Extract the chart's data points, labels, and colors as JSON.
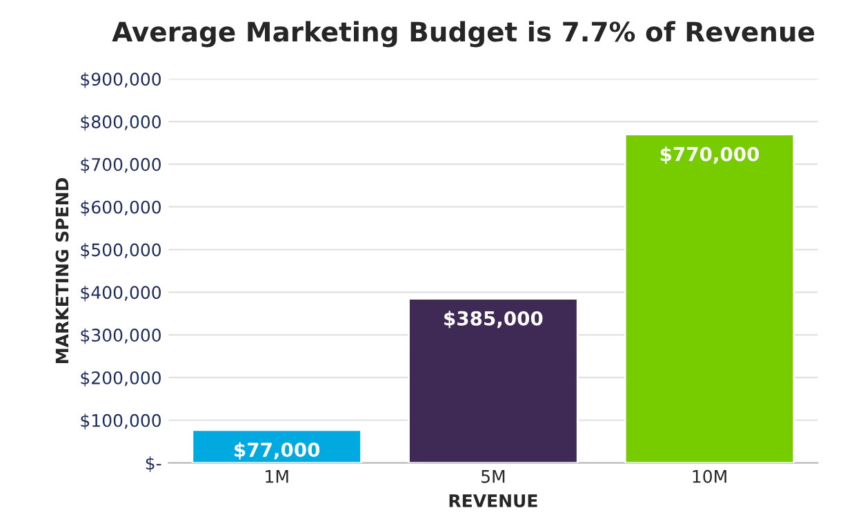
{
  "chart_data": {
    "type": "bar",
    "title": "Average Marketing Budget is 7.7% of Revenue",
    "xlabel": "REVENUE",
    "ylabel": "MARKETING SPEND",
    "categories": [
      "1M",
      "5M",
      "10M"
    ],
    "values": [
      77000,
      385000,
      770000
    ],
    "colors": [
      "#00a9e0",
      "#3f2a56",
      "#77cc00"
    ],
    "value_labels": [
      "$77,000",
      "$385,000",
      "$770,000"
    ],
    "ylim": [
      0,
      900000
    ],
    "yticks": [
      {
        "value": 0,
        "label": "$-"
      },
      {
        "value": 100000,
        "label": "$100,000"
      },
      {
        "value": 200000,
        "label": "$200,000"
      },
      {
        "value": 300000,
        "label": "$300,000"
      },
      {
        "value": 400000,
        "label": "$400,000"
      },
      {
        "value": 500000,
        "label": "$500,000"
      },
      {
        "value": 600000,
        "label": "$600,000"
      },
      {
        "value": 700000,
        "label": "$700,000"
      },
      {
        "value": 800000,
        "label": "$800,000"
      },
      {
        "value": 900000,
        "label": "$900,000"
      }
    ],
    "grid": "y"
  }
}
